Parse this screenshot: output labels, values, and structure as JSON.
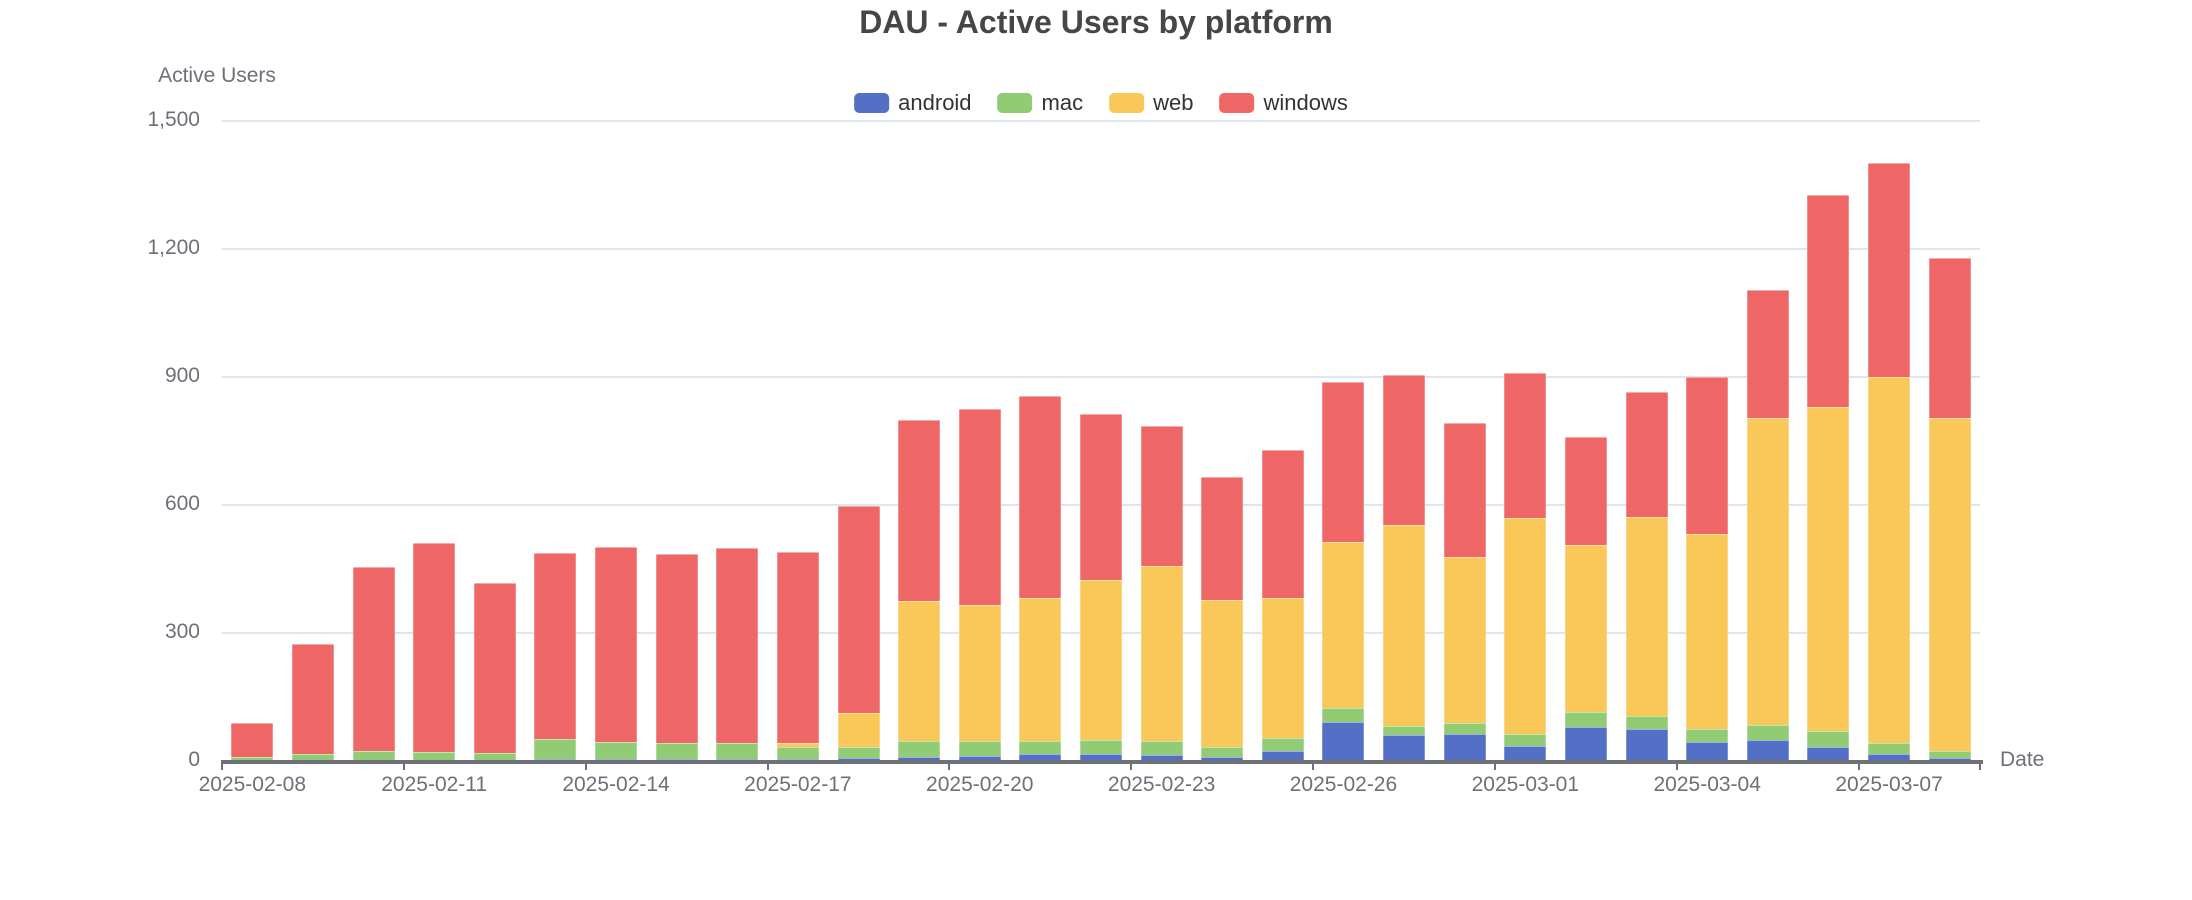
{
  "chart_data": {
    "type": "bar",
    "stacked": true,
    "title": "DAU - Active Users by platform",
    "ylabel": "Active Users",
    "xlabel": "Date",
    "ylim": [
      0,
      1500
    ],
    "grid": true,
    "legend_position": "top-center",
    "yticks": [
      {
        "value": 0,
        "label": "0"
      },
      {
        "value": 300,
        "label": "300"
      },
      {
        "value": 600,
        "label": "600"
      },
      {
        "value": 900,
        "label": "900"
      },
      {
        "value": 1200,
        "label": "1,200"
      },
      {
        "value": 1500,
        "label": "1,500"
      }
    ],
    "x_label_interval": 3,
    "categories": [
      "2025-02-08",
      "2025-02-09",
      "2025-02-10",
      "2025-02-11",
      "2025-02-12",
      "2025-02-13",
      "2025-02-14",
      "2025-02-15",
      "2025-02-16",
      "2025-02-17",
      "2025-02-18",
      "2025-02-19",
      "2025-02-20",
      "2025-02-21",
      "2025-02-22",
      "2025-02-23",
      "2025-02-24",
      "2025-02-25",
      "2025-02-26",
      "2025-02-27",
      "2025-02-28",
      "2025-03-01",
      "2025-03-02",
      "2025-03-03",
      "2025-03-04",
      "2025-03-05",
      "2025-03-06",
      "2025-03-07",
      "2025-03-08"
    ],
    "series": [
      {
        "name": "android",
        "color": "#5470C6",
        "values": [
          2,
          3,
          3,
          3,
          3,
          4,
          4,
          4,
          5,
          5,
          6,
          10,
          12,
          16,
          16,
          14,
          10,
          23,
          92,
          60,
          64,
          36,
          80,
          75,
          45,
          50,
          33,
          16,
          7
        ]
      },
      {
        "name": "mac",
        "color": "#91CC75",
        "values": [
          8,
          13,
          21,
          19,
          16,
          47,
          41,
          39,
          38,
          28,
          28,
          38,
          34,
          31,
          33,
          33,
          23,
          31,
          32,
          23,
          26,
          27,
          34,
          30,
          31,
          35,
          37,
          27,
          16
        ]
      },
      {
        "name": "web",
        "color": "#FAC858",
        "values": [
          0,
          0,
          0,
          0,
          0,
          0,
          0,
          0,
          0,
          9,
          78,
          327,
          320,
          335,
          376,
          410,
          344,
          328,
          389,
          470,
          388,
          507,
          392,
          467,
          456,
          719,
          760,
          857,
          781
        ]
      },
      {
        "name": "windows",
        "color": "#EE6666",
        "values": [
          78,
          258,
          430,
          489,
          398,
          437,
          456,
          442,
          457,
          448,
          486,
          424,
          459,
          474,
          388,
          328,
          289,
          347,
          375,
          352,
          314,
          339,
          254,
          293,
          368,
          300,
          497,
          502,
          375
        ]
      }
    ],
    "colors": {
      "title_text": "#464646",
      "axis_text": "#6E7079",
      "legend_text": "#333333",
      "gridline": "#E0E6F1",
      "axis_line": "#6E7079",
      "background": "#FFFFFF"
    }
  }
}
